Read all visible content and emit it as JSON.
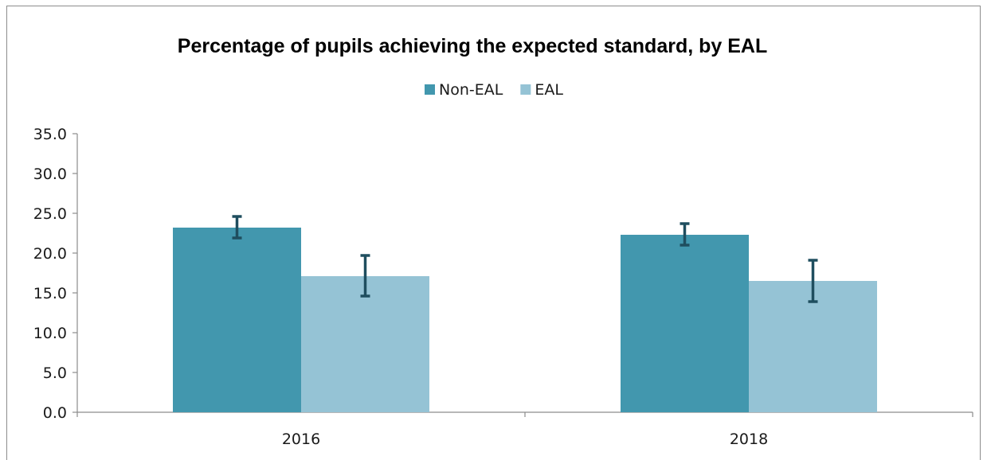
{
  "chart_data": {
    "type": "bar",
    "title": "Percentage of pupils achieving the expected standard, by EAL",
    "xlabel": "",
    "ylabel": "",
    "categories": [
      "2016",
      "2018"
    ],
    "ylim": [
      0,
      35
    ],
    "yticks": [
      "0.0",
      "5.0",
      "10.0",
      "15.0",
      "20.0",
      "25.0",
      "30.0",
      "35.0"
    ],
    "legend_position": "top",
    "grid": false,
    "series": [
      {
        "name": "Non-EAL",
        "color": "#4297ae",
        "values": [
          23.2,
          22.3
        ],
        "error_low": [
          21.9,
          21.0
        ],
        "error_high": [
          24.6,
          23.7
        ]
      },
      {
        "name": "EAL",
        "color": "#95c3d5",
        "values": [
          17.1,
          16.5
        ],
        "error_low": [
          14.6,
          13.9
        ],
        "error_high": [
          19.7,
          19.1
        ]
      }
    ],
    "error_bar_color": "#1f4e5f"
  }
}
